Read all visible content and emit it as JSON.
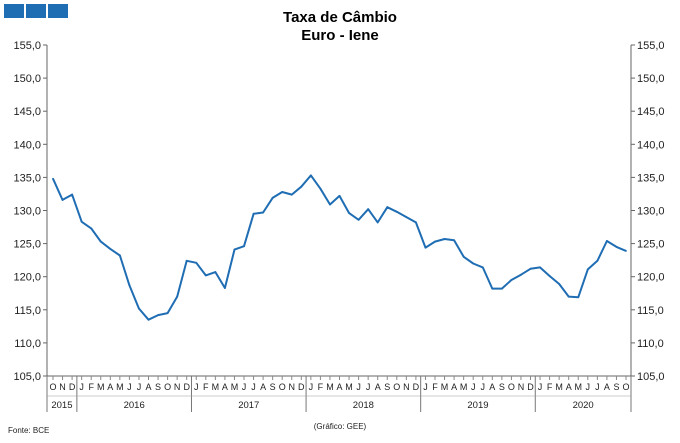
{
  "logo": {
    "squares": 3,
    "color": "#1f6db3"
  },
  "chart_data": {
    "type": "line",
    "title": "Taxa de Câmbio",
    "subtitle": "Euro - Iene",
    "source_note": "Fonte: BCE",
    "credit_note": "(Gráfico: GEE)",
    "line_color": "#1f6db3",
    "ylim": [
      105,
      155
    ],
    "yticks": [
      "105,0",
      "110,0",
      "115,0",
      "120,0",
      "125,0",
      "130,0",
      "135,0",
      "140,0",
      "145,0",
      "150,0",
      "155,0"
    ],
    "month_labels": [
      "O",
      "N",
      "D",
      "J",
      "F",
      "M",
      "A",
      "M",
      "J",
      "J",
      "A",
      "S",
      "O",
      "N",
      "D",
      "J",
      "F",
      "M",
      "A",
      "M",
      "J",
      "J",
      "A",
      "S",
      "O",
      "N",
      "D",
      "J",
      "F",
      "M",
      "A",
      "M",
      "J",
      "J",
      "A",
      "S",
      "O",
      "N",
      "D",
      "J",
      "F",
      "M",
      "A",
      "M",
      "J",
      "J",
      "A",
      "S",
      "O",
      "N",
      "D",
      "J",
      "F",
      "M",
      "A",
      "M",
      "J",
      "J",
      "A",
      "S",
      "O"
    ],
    "years": [
      {
        "label": "2015",
        "start": 0,
        "end": 2
      },
      {
        "label": "2016",
        "start": 3,
        "end": 14
      },
      {
        "label": "2017",
        "start": 15,
        "end": 26
      },
      {
        "label": "2018",
        "start": 27,
        "end": 38
      },
      {
        "label": "2019",
        "start": 39,
        "end": 50
      },
      {
        "label": "2020",
        "start": 51,
        "end": 60
      }
    ],
    "series": [
      {
        "values": [
          134.8,
          131.6,
          132.4,
          128.3,
          127.3,
          125.3,
          124.2,
          123.2,
          118.7,
          115.2,
          113.5,
          114.2,
          114.5,
          117.0,
          122.4,
          122.1,
          120.2,
          120.7,
          118.3,
          124.1,
          124.6,
          129.5,
          129.7,
          131.9,
          132.8,
          132.4,
          133.6,
          135.3,
          133.3,
          130.9,
          132.2,
          129.6,
          128.6,
          130.2,
          128.2,
          130.5,
          129.8,
          129.0,
          128.2,
          124.4,
          125.3,
          125.7,
          125.5,
          123.0,
          122.0,
          121.4,
          118.2,
          118.2,
          119.5,
          120.3,
          121.2,
          121.4,
          120.1,
          118.9,
          117.0,
          116.9,
          121.1,
          122.4,
          125.4,
          124.5,
          123.9
        ]
      }
    ]
  }
}
